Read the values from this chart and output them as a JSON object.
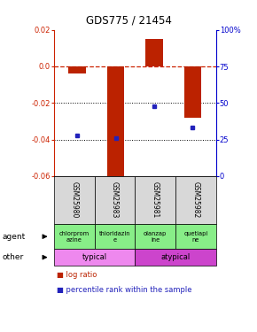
{
  "title": "GDS775 / 21454",
  "samples": [
    "GSM25980",
    "GSM25983",
    "GSM25981",
    "GSM25982"
  ],
  "log_ratios": [
    -0.004,
    -0.065,
    0.015,
    -0.028
  ],
  "percentile_ranks": [
    28,
    26,
    48,
    33
  ],
  "ylim_left": [
    -0.06,
    0.02
  ],
  "ylim_right": [
    0,
    100
  ],
  "yticks_left": [
    -0.06,
    -0.04,
    -0.02,
    0.0,
    0.02
  ],
  "yticks_right": [
    0,
    25,
    50,
    75,
    100
  ],
  "agent_labels": [
    "chlorprom\nazine",
    "thioridazin\ne",
    "olanzap\nine",
    "quetiapi\nne"
  ],
  "bar_color": "#bb2200",
  "dot_color": "#2222bb",
  "dashed_line_color": "#cc2200",
  "dotted_line_color": "#000000",
  "left_axis_color": "#cc2200",
  "right_axis_color": "#0000cc",
  "bg_color": "#d8d8d8",
  "green_color": "#88ee88",
  "typical_color": "#ee88ee",
  "atypical_color": "#cc44cc",
  "bar_width": 0.45
}
